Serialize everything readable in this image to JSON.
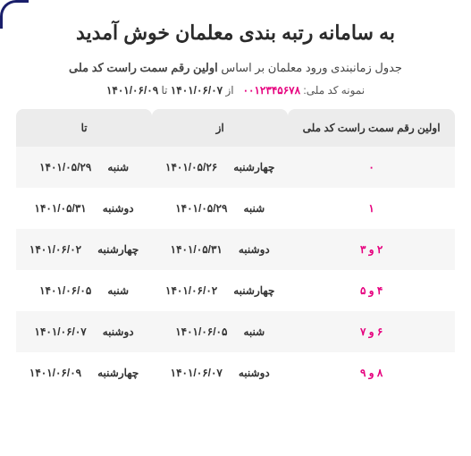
{
  "title": "به سامانه رتبه بندی معلمان خوش آمدید",
  "subtitle_pre": "جدول زمانبندی ورود معلمان بر اساس ",
  "subtitle_bold": "اولین رقم سمت راست کد ملی",
  "sample_label": "نمونه کد ملی:",
  "sample_code": "۰۰۱۲۳۴۵۶۷۸",
  "range_from_lbl": "از",
  "range_from": "۱۴۰۱/۰۶/۰۷",
  "range_to_lbl": "تا",
  "range_to": "۱۴۰۱/۰۶/۰۹",
  "columns": {
    "digit": "اولین رقم سمت راست کد ملی",
    "from": "از",
    "to": "تا"
  },
  "rows": [
    {
      "digit": "۰",
      "from_day": "چهارشنبه",
      "from_date": "۱۴۰۱/۰۵/۲۶",
      "to_day": "شنبه",
      "to_date": "۱۴۰۱/۰۵/۲۹"
    },
    {
      "digit": "۱",
      "from_day": "شنبه",
      "from_date": "۱۴۰۱/۰۵/۲۹",
      "to_day": "دوشنبه",
      "to_date": "۱۴۰۱/۰۵/۳۱"
    },
    {
      "digit": "۲ و ۳",
      "from_day": "دوشنبه",
      "from_date": "۱۴۰۱/۰۵/۳۱",
      "to_day": "چهارشنبه",
      "to_date": "۱۴۰۱/۰۶/۰۲"
    },
    {
      "digit": "۴ و ۵",
      "from_day": "چهارشنبه",
      "from_date": "۱۴۰۱/۰۶/۰۲",
      "to_day": "شنبه",
      "to_date": "۱۴۰۱/۰۶/۰۵"
    },
    {
      "digit": "۶ و ۷",
      "from_day": "شنبه",
      "from_date": "۱۴۰۱/۰۶/۰۵",
      "to_day": "دوشنبه",
      "to_date": "۱۴۰۱/۰۶/۰۷"
    },
    {
      "digit": "۸ و ۹",
      "from_day": "دوشنبه",
      "from_date": "۱۴۰۱/۰۶/۰۷",
      "to_day": "چهارشنبه",
      "to_date": "۱۴۰۱/۰۶/۰۹"
    }
  ],
  "colors": {
    "accent": "#e6007e",
    "header_bg": "#ececec",
    "row_alt": "#f6f6f6",
    "corner": "#1a1f6b"
  }
}
